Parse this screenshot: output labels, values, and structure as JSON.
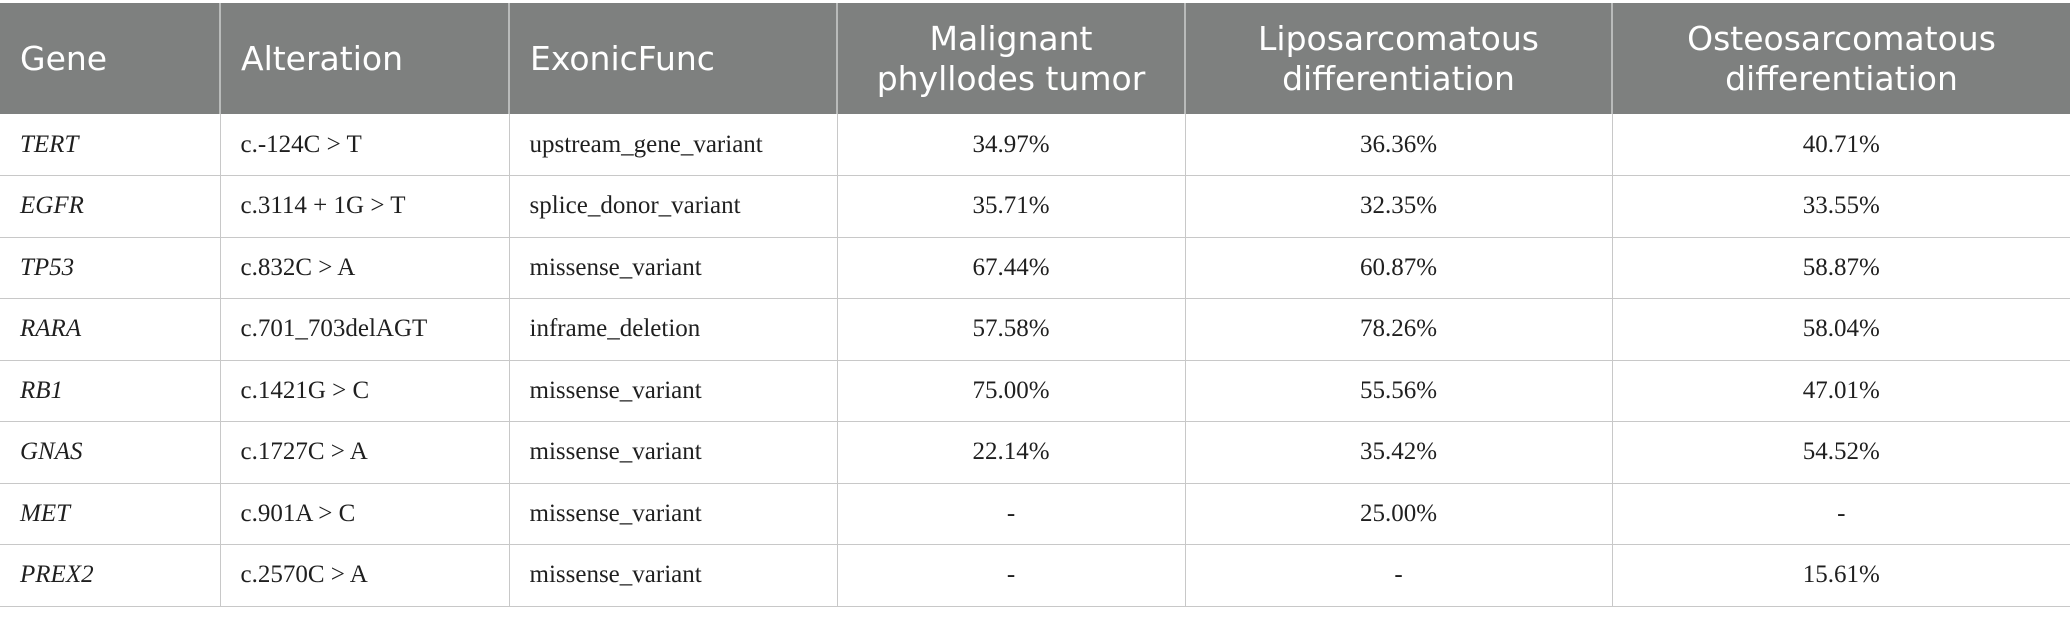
{
  "table": {
    "headers": [
      "Gene",
      "Alteration",
      "ExonicFunc",
      "Malignant phyllodes tumor",
      "Liposarcomatous differentiation",
      "Osteosarcomatous differentiation"
    ],
    "rows": [
      [
        "TERT",
        "c.-124C > T",
        "upstream_gene_variant",
        "34.97%",
        "36.36%",
        "40.71%"
      ],
      [
        "EGFR",
        "c.3114 + 1G > T",
        "splice_donor_variant",
        "35.71%",
        "32.35%",
        "33.55%"
      ],
      [
        "TP53",
        "c.832C > A",
        "missense_variant",
        "67.44%",
        "60.87%",
        "58.87%"
      ],
      [
        "RARA",
        "c.701_703delAGT",
        "inframe_deletion",
        "57.58%",
        "78.26%",
        "58.04%"
      ],
      [
        "RB1",
        "c.1421G > C",
        "missense_variant",
        "75.00%",
        "55.56%",
        "47.01%"
      ],
      [
        "GNAS",
        "c.1727C > A",
        "missense_variant",
        "22.14%",
        "35.42%",
        "54.52%"
      ],
      [
        "MET",
        "c.901A > C",
        "missense_variant",
        "-",
        "25.00%",
        "-"
      ],
      [
        "PREX2",
        "c.2570C > A",
        "missense_variant",
        "-",
        "-",
        "15.61%"
      ]
    ]
  },
  "colors": {
    "header_background": "#7e807f",
    "header_text": "#ffffff",
    "grid_line": "#c8c8c8"
  }
}
